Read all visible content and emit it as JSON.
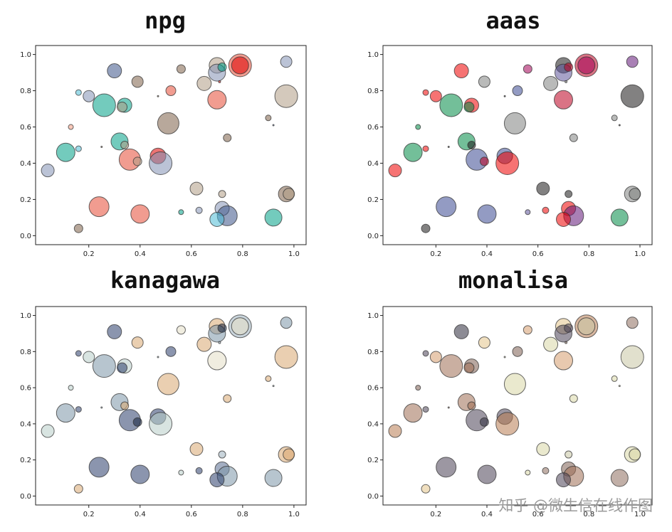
{
  "watermark": "知乎 @微生信在线作图",
  "shared": {
    "type": "scatter",
    "xlim": [
      0.0,
      1.0
    ],
    "ylim": [
      0.0,
      1.0
    ],
    "xticks": [
      0.2,
      0.4,
      0.6,
      0.8,
      1.0
    ],
    "xtick_labels": [
      "0.2",
      "0.4",
      "0.6",
      "0.8",
      "1.0"
    ],
    "yticks": [
      0.0,
      0.2,
      0.4,
      0.6,
      0.8,
      1.0
    ],
    "ytick_labels": [
      "0.0",
      "0.2",
      "0.4",
      "0.6",
      "0.8",
      "1.0"
    ],
    "points": [
      {
        "x": 0.3,
        "y": 0.91,
        "s": 10
      },
      {
        "x": 0.56,
        "y": 0.92,
        "s": 6
      },
      {
        "x": 0.7,
        "y": 0.94,
        "s": 11
      },
      {
        "x": 0.7,
        "y": 0.9,
        "s": 12
      },
      {
        "x": 0.72,
        "y": 0.93,
        "s": 6
      },
      {
        "x": 0.79,
        "y": 0.94,
        "s": 16
      },
      {
        "x": 0.79,
        "y": 0.94,
        "s": 12
      },
      {
        "x": 0.97,
        "y": 0.96,
        "s": 8
      },
      {
        "x": 0.39,
        "y": 0.85,
        "s": 8
      },
      {
        "x": 0.65,
        "y": 0.84,
        "s": 10
      },
      {
        "x": 0.16,
        "y": 0.79,
        "s": 4
      },
      {
        "x": 0.2,
        "y": 0.77,
        "s": 8
      },
      {
        "x": 0.52,
        "y": 0.8,
        "s": 7
      },
      {
        "x": 0.47,
        "y": 0.77,
        "s": 1
      },
      {
        "x": 0.71,
        "y": 0.85,
        "s": 1.5
      },
      {
        "x": 0.26,
        "y": 0.72,
        "s": 16
      },
      {
        "x": 0.34,
        "y": 0.72,
        "s": 10
      },
      {
        "x": 0.33,
        "y": 0.71,
        "s": 7
      },
      {
        "x": 0.7,
        "y": 0.75,
        "s": 13
      },
      {
        "x": 0.97,
        "y": 0.77,
        "s": 16
      },
      {
        "x": 0.13,
        "y": 0.6,
        "s": 3.5
      },
      {
        "x": 0.51,
        "y": 0.62,
        "s": 15
      },
      {
        "x": 0.9,
        "y": 0.65,
        "s": 4
      },
      {
        "x": 0.92,
        "y": 0.61,
        "s": 1
      },
      {
        "x": 0.32,
        "y": 0.52,
        "s": 12
      },
      {
        "x": 0.34,
        "y": 0.5,
        "s": 5.5
      },
      {
        "x": 0.74,
        "y": 0.54,
        "s": 5.5
      },
      {
        "x": 0.11,
        "y": 0.46,
        "s": 13
      },
      {
        "x": 0.16,
        "y": 0.48,
        "s": 4
      },
      {
        "x": 0.25,
        "y": 0.49,
        "s": 1
      },
      {
        "x": 0.36,
        "y": 0.42,
        "s": 15
      },
      {
        "x": 0.39,
        "y": 0.41,
        "s": 6
      },
      {
        "x": 0.47,
        "y": 0.44,
        "s": 11
      },
      {
        "x": 0.48,
        "y": 0.4,
        "s": 16
      },
      {
        "x": 0.04,
        "y": 0.36,
        "s": 9
      },
      {
        "x": 0.62,
        "y": 0.26,
        "s": 9
      },
      {
        "x": 0.72,
        "y": 0.23,
        "s": 5
      },
      {
        "x": 0.97,
        "y": 0.23,
        "s": 11
      },
      {
        "x": 0.98,
        "y": 0.23,
        "s": 8
      },
      {
        "x": 0.24,
        "y": 0.16,
        "s": 14
      },
      {
        "x": 0.4,
        "y": 0.12,
        "s": 13
      },
      {
        "x": 0.56,
        "y": 0.13,
        "s": 3.5
      },
      {
        "x": 0.63,
        "y": 0.14,
        "s": 4.5
      },
      {
        "x": 0.72,
        "y": 0.15,
        "s": 10
      },
      {
        "x": 0.74,
        "y": 0.11,
        "s": 14
      },
      {
        "x": 0.7,
        "y": 0.09,
        "s": 10
      },
      {
        "x": 0.92,
        "y": 0.1,
        "s": 12
      },
      {
        "x": 0.16,
        "y": 0.04,
        "s": 6
      }
    ]
  },
  "chart_data": [
    {
      "type": "scatter",
      "title": "npg",
      "xlim": [
        0.0,
        1.0
      ],
      "ylim": [
        0.0,
        1.0
      ],
      "palette": [
        "#E64B35",
        "#4DBBD5",
        "#00A087",
        "#3C5488",
        "#F39B7F",
        "#8491B4",
        "#91D1C2",
        "#DC0000",
        "#7E6148",
        "#B09C85"
      ],
      "colors": [
        3,
        8,
        9,
        5,
        2,
        0,
        7,
        5,
        8,
        9,
        1,
        5,
        0,
        8,
        7,
        2,
        2,
        9,
        0,
        9,
        4,
        8,
        8,
        3,
        2,
        9,
        8,
        2,
        1,
        8,
        0,
        9,
        7,
        5,
        5,
        9,
        9,
        8,
        9,
        0,
        0,
        2,
        5,
        5,
        3,
        1,
        2,
        8
      ]
    },
    {
      "type": "scatter",
      "title": "aaas",
      "xlim": [
        0.0,
        1.0
      ],
      "ylim": [
        0.0,
        1.0
      ],
      "palette": [
        "#3B4992",
        "#EE0000",
        "#008B45",
        "#631879",
        "#008280",
        "#BB0021",
        "#5F559B",
        "#A20056",
        "#808180",
        "#1B1919"
      ],
      "colors": [
        1,
        7,
        9,
        6,
        5,
        5,
        7,
        3,
        8,
        8,
        1,
        1,
        0,
        9,
        8,
        2,
        1,
        2,
        5,
        9,
        2,
        8,
        8,
        9,
        2,
        9,
        8,
        2,
        1,
        9,
        0,
        5,
        0,
        1,
        1,
        9,
        9,
        8,
        8,
        0,
        0,
        6,
        1,
        1,
        3,
        1,
        2,
        9
      ]
    },
    {
      "type": "scatter",
      "title": "kanagawa",
      "xlim": [
        0.0,
        1.0
      ],
      "ylim": [
        0.0,
        1.0
      ],
      "palette": [
        "#14213D",
        "#2C3E6B",
        "#586B8F",
        "#7B96A8",
        "#B8CDC8",
        "#E4DFC6",
        "#D9A771",
        "#C9A36E",
        "#3F5873",
        "#9CB0BE"
      ],
      "colors": [
        1,
        5,
        6,
        3,
        0,
        9,
        5,
        3,
        6,
        6,
        1,
        4,
        1,
        9,
        9,
        3,
        4,
        1,
        5,
        6,
        4,
        6,
        6,
        9,
        3,
        6,
        6,
        3,
        1,
        9,
        1,
        0,
        1,
        4,
        4,
        6,
        9,
        6,
        6,
        1,
        1,
        4,
        1,
        2,
        3,
        1,
        3,
        6
      ]
    },
    {
      "type": "scatter",
      "title": "monalisa",
      "xlim": [
        0.0,
        1.0
      ],
      "ylim": [
        0.0,
        1.0
      ],
      "palette": [
        "#2E2C3C",
        "#4A4256",
        "#7D5F52",
        "#9E6D53",
        "#B87C52",
        "#D59D6D",
        "#E4C58A",
        "#D9D7A6",
        "#8E6E5F",
        "#C9C7A4"
      ],
      "colors": [
        0,
        5,
        6,
        1,
        1,
        4,
        9,
        8,
        6,
        7,
        1,
        5,
        2,
        9,
        8,
        3,
        2,
        3,
        5,
        9,
        2,
        7,
        7,
        9,
        3,
        3,
        7,
        3,
        1,
        8,
        1,
        0,
        1,
        4,
        4,
        7,
        9,
        7,
        7,
        1,
        1,
        7,
        8,
        2,
        3,
        1,
        8,
        6
      ]
    }
  ]
}
